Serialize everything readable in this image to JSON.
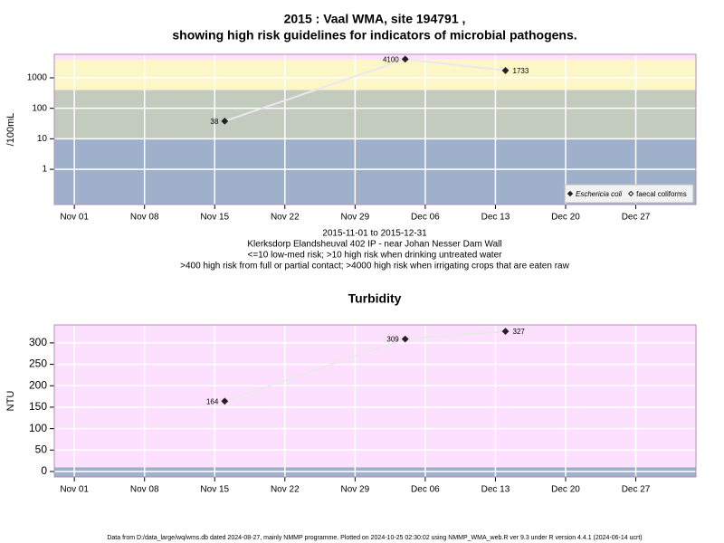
{
  "chart_data": [
    {
      "type": "line",
      "title": "2015 : Vaal WMA, site 194791 ,",
      "subtitle": "showing high risk guidelines for indicators of microbial pathogens.",
      "notes": [
        "2015-11-01 to 2015-12-31",
        "Klerksdorp Elandsheuval 402 IP - near Johan Nesser Dam Wall",
        "<=10 low-med risk; >10 high risk when drinking untreated water",
        ">400 high risk from full or partial contact; >4000 high risk when irrigating crops that are eaten raw"
      ],
      "ylabel": "/100mL",
      "log": true,
      "grid": true,
      "legend": "bottom-right",
      "x": [
        "2015-11-16",
        "2015-12-04",
        "2015-12-14"
      ],
      "series": [
        {
          "name": "Eschericia coli",
          "color": "#222222",
          "marker": "filled",
          "values": [
            38,
            4100,
            1733
          ]
        },
        {
          "name": "faecal coliforms",
          "color": "#222222",
          "marker": "open",
          "values": [
            null,
            null,
            null
          ]
        }
      ],
      "xlim": [
        "2015-10-30",
        "2016-01-02"
      ],
      "xticks": [
        {
          "value": "2015-11-01",
          "label": "Nov 01"
        },
        {
          "value": "2015-11-08",
          "label": "Nov 08"
        },
        {
          "value": "2015-11-15",
          "label": "Nov 15"
        },
        {
          "value": "2015-11-22",
          "label": "Nov 22"
        },
        {
          "value": "2015-11-29",
          "label": "Nov 29"
        },
        {
          "value": "2015-12-06",
          "label": "Dec 06"
        },
        {
          "value": "2015-12-13",
          "label": "Dec 13"
        },
        {
          "value": "2015-12-20",
          "label": "Dec 20"
        },
        {
          "value": "2015-12-27",
          "label": "Dec 27"
        }
      ],
      "ylim": [
        0.07,
        5900
      ],
      "yticks": [
        1,
        10,
        100,
        1000
      ],
      "bands": [
        {
          "to": 10,
          "color": "#9fb0cb"
        },
        {
          "from": 10,
          "to": 400,
          "color": "#c3cbbf"
        },
        {
          "from": 400,
          "to": 4000,
          "color": "#fdf7c8"
        },
        {
          "from": 4000,
          "color": "#fde0fd"
        }
      ]
    },
    {
      "type": "line",
      "title": "Turbidity",
      "ylabel": "NTU",
      "log": false,
      "grid": true,
      "x": [
        "2015-11-16",
        "2015-12-04",
        "2015-12-14"
      ],
      "series": [
        {
          "name": "Turbidity",
          "color": "#222222",
          "marker": "filled",
          "values": [
            164,
            309,
            327
          ]
        }
      ],
      "xlim": [
        "2015-10-30",
        "2016-01-02"
      ],
      "xticks": [
        {
          "value": "2015-11-01",
          "label": "Nov 01"
        },
        {
          "value": "2015-11-08",
          "label": "Nov 08"
        },
        {
          "value": "2015-11-15",
          "label": "Nov 15"
        },
        {
          "value": "2015-11-22",
          "label": "Nov 22"
        },
        {
          "value": "2015-11-29",
          "label": "Nov 29"
        },
        {
          "value": "2015-12-06",
          "label": "Dec 06"
        },
        {
          "value": "2015-12-13",
          "label": "Dec 13"
        },
        {
          "value": "2015-12-20",
          "label": "Dec 20"
        },
        {
          "value": "2015-12-27",
          "label": "Dec 27"
        }
      ],
      "ylim": [
        -12.7,
        342
      ],
      "yticks": [
        0,
        50,
        100,
        150,
        200,
        250,
        300
      ],
      "bands": [
        {
          "to": 10,
          "color": "#9fb0cb"
        },
        {
          "from": 10,
          "color": "#fde0fd"
        }
      ]
    }
  ],
  "footer": "Data from D:/data_large/wq/wms.db dated 2024-08-27, mainly NMMP programme. Plotted on 2024-10-25 02:30:02 using NMMP_WMA_web.R ver 9.3 under R version 4.4.1 (2024-06-14 ucrt)"
}
